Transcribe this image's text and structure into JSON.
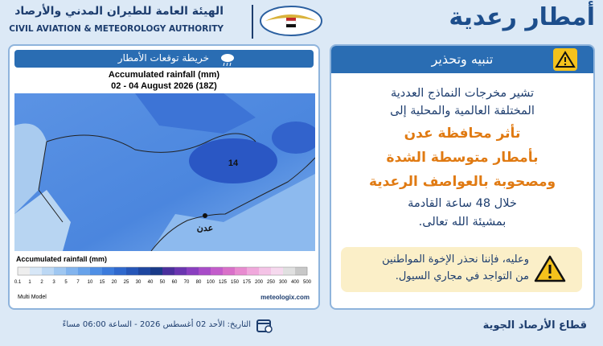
{
  "header": {
    "title": "أمطار رعدية",
    "org_ar": "الهيئة العامة للطيران المدني والأرصاد",
    "org_en": "CIVIL AVIATION & METEOROLOGY AUTHORITY"
  },
  "map_panel": {
    "heading": "خريطة توقعات الأمطار",
    "map_title": "Accumulated rainfall (mm)",
    "map_period": "02 - 04 August 2026 (18Z)",
    "contour_label": "14",
    "city": "عدن",
    "legend": {
      "title": "Accumulated rainfall (mm)",
      "ticks": [
        0.1,
        1,
        2,
        3,
        5,
        7,
        10,
        15,
        20,
        25,
        30,
        40,
        50,
        60,
        70,
        80,
        100,
        125,
        150,
        175,
        200,
        250,
        300,
        400,
        500
      ],
      "colors": [
        "#eeeeee",
        "#d7e7f7",
        "#bcd8f4",
        "#9fc7f1",
        "#82b4ee",
        "#67a2ea",
        "#4f8fe5",
        "#3c7bdc",
        "#2f68cd",
        "#2656b8",
        "#1e46a0",
        "#193a88",
        "#4a2f9c",
        "#6a35b0",
        "#8a3fc0",
        "#a84cc8",
        "#c35ccb",
        "#d970c9",
        "#e88bd0",
        "#f0a8dc",
        "#f4c3e6",
        "#f6d9ee",
        "#e0e0e0",
        "#c8c8c8"
      ]
    },
    "source_left": "Multi Model",
    "source_right": "meteologix.com"
  },
  "warning_panel": {
    "heading": "تنبيه وتحذير",
    "lines": [
      {
        "text": "تشير مخرجات النماذج العددية",
        "style": "normal"
      },
      {
        "text": "المختلفة العالمية والمحلية إلى",
        "style": "normal"
      },
      {
        "text": "تأثر محافظة عدن",
        "style": "accent"
      },
      {
        "text": "بأمطار متوسطة الشدة",
        "style": "accent"
      },
      {
        "text": "ومصحوبة بالعواصف الرعدية",
        "style": "accent"
      },
      {
        "text": "خلال 48 ساعة القادمة",
        "style": "normal"
      },
      {
        "text": "بمشيئة الله تعالى.",
        "style": "normal"
      }
    ],
    "alert": [
      "وعليه، فإننا نحذر الإخوة المواطنين",
      "من التواجد في مجاري السيول."
    ]
  },
  "footer": {
    "date": "التاريخ: الأحد 02 أغسطس 2026 - الساعة 06:00 مساءً",
    "department": "قطاع الأرصاد الجوية"
  }
}
